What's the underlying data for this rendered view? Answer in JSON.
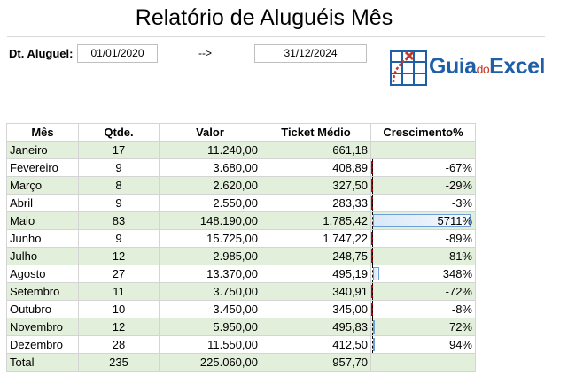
{
  "title": "Relatório de Aluguéis Mês",
  "filter": {
    "label": "Dt. Aluguel:",
    "start_date": "01/01/2020",
    "arrow": "-->",
    "end_date": "31/12/2024"
  },
  "logo": {
    "part1": "Guia",
    "part2": "do",
    "part3": "Excel"
  },
  "table": {
    "headers": [
      "Mês",
      "Qtde.",
      "Valor",
      "Ticket Médio",
      "Crescimento%"
    ],
    "rows": [
      {
        "mes": "Janeiro",
        "qtde": "17",
        "valor": "11.240,00",
        "ticket": "661,18",
        "cresc": "",
        "cresc_value": null
      },
      {
        "mes": "Fevereiro",
        "qtde": "9",
        "valor": "3.680,00",
        "ticket": "408,89",
        "cresc": "-67%",
        "cresc_value": -67
      },
      {
        "mes": "Março",
        "qtde": "8",
        "valor": "2.620,00",
        "ticket": "327,50",
        "cresc": "-29%",
        "cresc_value": -29
      },
      {
        "mes": "Abril",
        "qtde": "9",
        "valor": "2.550,00",
        "ticket": "283,33",
        "cresc": "-3%",
        "cresc_value": -3
      },
      {
        "mes": "Maio",
        "qtde": "83",
        "valor": "148.190,00",
        "ticket": "1.785,42",
        "cresc": "5711%",
        "cresc_value": 5711
      },
      {
        "mes": "Junho",
        "qtde": "9",
        "valor": "15.725,00",
        "ticket": "1.747,22",
        "cresc": "-89%",
        "cresc_value": -89
      },
      {
        "mes": "Julho",
        "qtde": "12",
        "valor": "2.985,00",
        "ticket": "248,75",
        "cresc": "-81%",
        "cresc_value": -81
      },
      {
        "mes": "Agosto",
        "qtde": "27",
        "valor": "13.370,00",
        "ticket": "495,19",
        "cresc": "348%",
        "cresc_value": 348
      },
      {
        "mes": "Setembro",
        "qtde": "11",
        "valor": "3.750,00",
        "ticket": "340,91",
        "cresc": "-72%",
        "cresc_value": -72
      },
      {
        "mes": "Outubro",
        "qtde": "10",
        "valor": "3.450,00",
        "ticket": "345,00",
        "cresc": "-8%",
        "cresc_value": -8
      },
      {
        "mes": "Novembro",
        "qtde": "12",
        "valor": "5.950,00",
        "ticket": "495,83",
        "cresc": "72%",
        "cresc_value": 72
      },
      {
        "mes": "Dezembro",
        "qtde": "28",
        "valor": "11.550,00",
        "ticket": "412,50",
        "cresc": "94%",
        "cresc_value": 94
      },
      {
        "mes": "Total",
        "qtde": "235",
        "valor": "225.060,00",
        "ticket": "957,70",
        "cresc": "",
        "cresc_value": null
      }
    ]
  },
  "colors": {
    "band": "#e2efda",
    "positive_bar": "#6f9fd8",
    "negative_bar": "#c00000",
    "logo_blue": "#1f5fa8",
    "logo_red": "#c0392b"
  }
}
